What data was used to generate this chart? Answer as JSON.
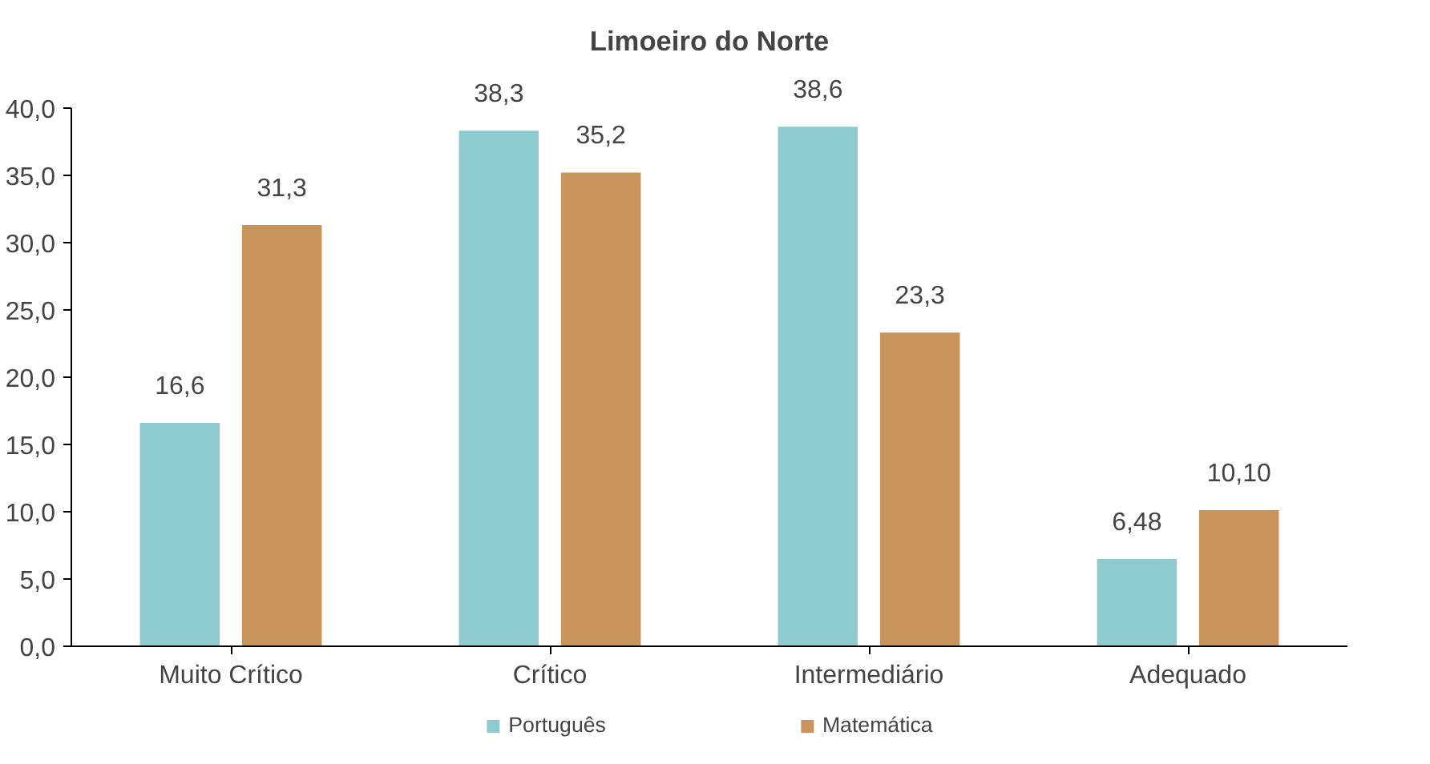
{
  "chart_data": {
    "type": "bar",
    "title": "Limoeiro do Norte",
    "categories": [
      "Muito Crítico",
      "Crítico",
      "Intermediário",
      "Adequado"
    ],
    "series": [
      {
        "name": "Português",
        "color": "#8ecbcf",
        "values": [
          16.6,
          38.3,
          38.6,
          6.48
        ],
        "value_labels": [
          "16,6",
          "38,3",
          "38,6",
          "6,48"
        ]
      },
      {
        "name": "Matemática",
        "color": "#c8945c",
        "values": [
          31.3,
          35.2,
          23.3,
          10.1
        ],
        "value_labels": [
          "31,3",
          "35,2",
          "23,3",
          "10,10"
        ]
      }
    ],
    "ylim": [
      0,
      40
    ],
    "yticks": [
      {
        "value": 0,
        "label": "0,0"
      },
      {
        "value": 5,
        "label": "5,0"
      },
      {
        "value": 10,
        "label": "10,0"
      },
      {
        "value": 15,
        "label": "15,0"
      },
      {
        "value": 20,
        "label": "20,0"
      },
      {
        "value": 25,
        "label": "25,0"
      },
      {
        "value": 30,
        "label": "30,0"
      },
      {
        "value": 35,
        "label": "35,0"
      },
      {
        "value": 40,
        "label": "40,0"
      }
    ],
    "grid": false,
    "legend": "bottom"
  }
}
